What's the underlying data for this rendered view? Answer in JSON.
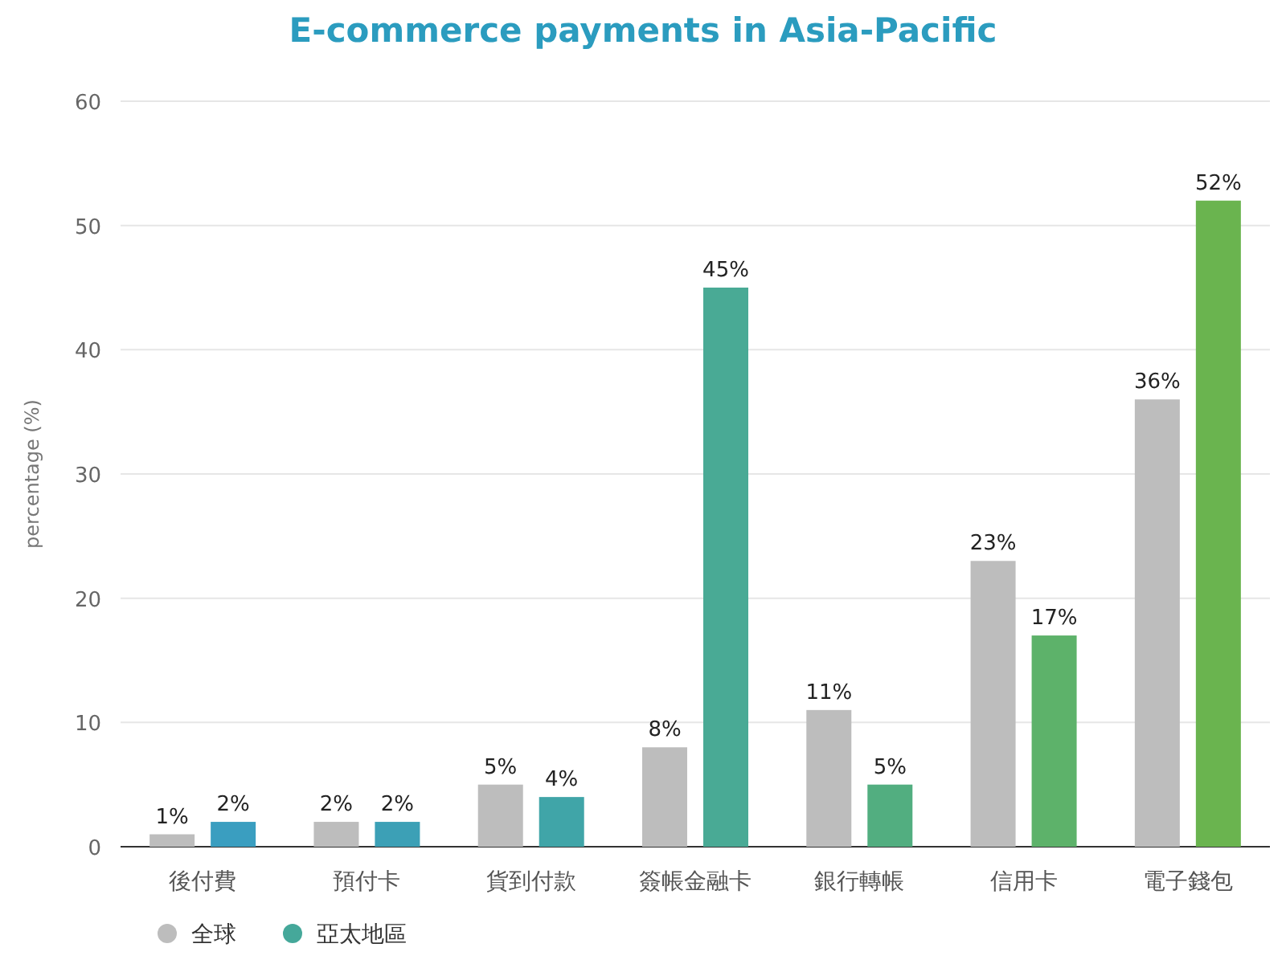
{
  "chart_data": {
    "type": "bar",
    "title": "E-commerce payments in Asia-Pacific",
    "ylabel": "percentage (%)",
    "categories": [
      "後付費",
      "預付卡",
      "貨到付款",
      "簽帳金融卡",
      "銀行轉帳",
      "信用卡",
      "電子錢包"
    ],
    "series": [
      {
        "name": "全球",
        "color": "#bdbdbd",
        "values": [
          1,
          2,
          5,
          8,
          11,
          23,
          36
        ],
        "value_labels": [
          "1%",
          "2%",
          "5%",
          "8%",
          "11%",
          "23%",
          "36%"
        ]
      },
      {
        "name": "亞太地區",
        "color": "#45a89a",
        "colors": [
          "#3a9ec0",
          "#3ca0b6",
          "#40a5a8",
          "#49aa95",
          "#52ae80",
          "#5db26a",
          "#6ab44f"
        ],
        "values": [
          2,
          2,
          4,
          45,
          5,
          17,
          52
        ],
        "value_labels": [
          "2%",
          "2%",
          "4%",
          "45%",
          "5%",
          "17%",
          "52%"
        ]
      }
    ],
    "ylim": [
      0,
      60
    ],
    "yticks": [
      0,
      10,
      20,
      30,
      40,
      50,
      60
    ],
    "grid": "y",
    "legend": "bottom left"
  }
}
